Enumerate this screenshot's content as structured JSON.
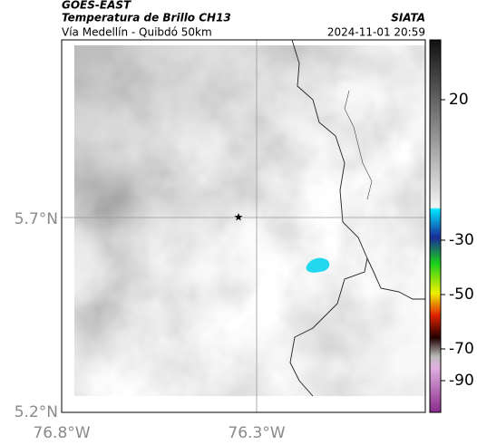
{
  "header": {
    "title": "GOES-EAST",
    "subtitle": "Temperatura de Brillo CH13",
    "source": "SIATA",
    "route": "Vía Medellín - Quibdó 50km",
    "datetime": "2024-11-01 20:59"
  },
  "axes": {
    "lat_labels": [
      "5.7°N",
      "5.2°N"
    ],
    "lon_labels": [
      "76.8°W",
      "76.3°W"
    ]
  },
  "colorbar": {
    "tick_labels": [
      "20",
      "-30",
      "-50",
      "-70",
      "-90"
    ]
  }
}
